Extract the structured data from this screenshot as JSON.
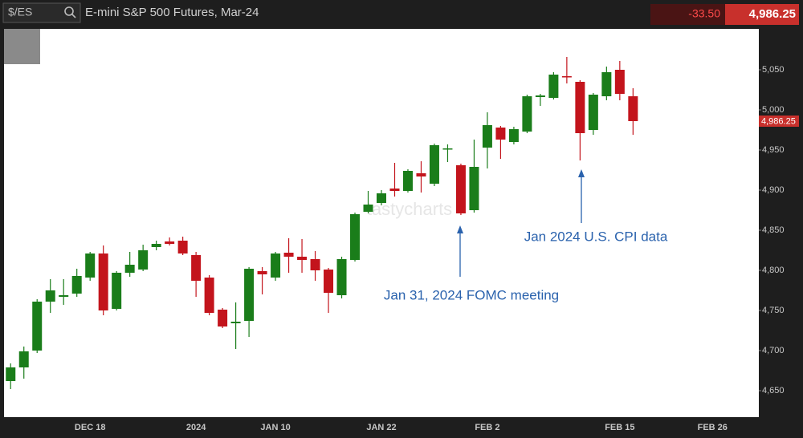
{
  "header": {
    "symbol": "$/ES",
    "title": "E-mini S&P 500 Futures, Mar-24",
    "change": "-33.50",
    "price": "4,986.25"
  },
  "chart_data": {
    "type": "candlestick",
    "watermark": "tastycharts",
    "annotations": [
      "Jan 31, 2024 FOMC meeting",
      "Jan 2024 U.S. CPI data"
    ],
    "up_color": "#1a7d1a",
    "down_color": "#c3141c",
    "grid": false,
    "categories": [
      null,
      null,
      null,
      null,
      null,
      null,
      "DEC 18",
      null,
      null,
      null,
      null,
      null,
      null,
      null,
      "2024",
      null,
      null,
      null,
      null,
      null,
      "JAN 10",
      null,
      null,
      null,
      null,
      null,
      null,
      null,
      "JAN 22",
      null,
      null,
      null,
      null,
      null,
      null,
      null,
      "FEB 2",
      null,
      null,
      null,
      null,
      null,
      null,
      null,
      null,
      null,
      "FEB 15",
      null,
      null,
      null,
      null,
      null,
      null,
      "FEB 26",
      null,
      null,
      null
    ],
    "open": [
      4662,
      4679,
      4700,
      4761,
      4767,
      4771,
      4791,
      4821,
      4752,
      4797,
      4801,
      4829,
      4836,
      4837,
      4819,
      4791,
      4751,
      4734,
      4737,
      4799,
      4791,
      4822,
      4817,
      4814,
      4801,
      4769,
      4813,
      4873,
      4884,
      4902,
      4899,
      4921,
      4908,
      4951,
      4931,
      4875,
      4953,
      4978,
      4960,
      4973,
      5016,
      5015,
      5042,
      5035,
      4975,
      5017,
      5050,
      5017,
      null,
      null,
      null,
      null,
      null,
      null,
      null,
      null,
      null
    ],
    "high": [
      4684,
      4705,
      4764,
      4789,
      4789,
      4802,
      4823,
      4831,
      4799,
      4823,
      4832,
      4837,
      4841,
      4842,
      4823,
      4794,
      4753,
      4760,
      4804,
      4804,
      4823,
      4840,
      4839,
      4824,
      4803,
      4817,
      4872,
      4899,
      4900,
      4934,
      4926,
      4936,
      4958,
      4957,
      4933,
      4963,
      4997,
      4980,
      4979,
      5019,
      5020,
      5047,
      5066,
      5037,
      5021,
      5054,
      5061,
      5027,
      null,
      null,
      null,
      null,
      null,
      null,
      null,
      null,
      null
    ],
    "low": [
      4652,
      4665,
      4697,
      4747,
      4757,
      4767,
      4787,
      4744,
      4750,
      4792,
      4799,
      4825,
      4831,
      4819,
      4767,
      4744,
      4728,
      4702,
      4717,
      4770,
      4787,
      4797,
      4797,
      4787,
      4747,
      4765,
      4811,
      4871,
      4881,
      4892,
      4897,
      4897,
      4905,
      4935,
      4869,
      4872,
      4927,
      4939,
      4957,
      4971,
      5005,
      5013,
      5033,
      4937,
      4969,
      5012,
      5012,
      4969,
      null,
      null,
      null,
      null,
      null,
      null,
      null,
      null,
      null
    ],
    "close": [
      4679,
      4699,
      4761,
      4775,
      4769,
      4793,
      4821,
      4750,
      4797,
      4807,
      4825,
      4833,
      4833,
      4821,
      4787,
      4747,
      4730,
      4736,
      4802,
      4795,
      4821,
      4817,
      4813,
      4800,
      4772,
      4814,
      4870,
      4882,
      4896,
      4899,
      4924,
      4917,
      4956,
      4952,
      4871,
      4929,
      4981,
      4963,
      4976,
      5017,
      5018,
      5044,
      5041,
      4971,
      5019,
      5047,
      5020,
      4986,
      null,
      null,
      null,
      null,
      null,
      null,
      null,
      null,
      null
    ],
    "ylim": [
      4617,
      5101
    ],
    "yticks": [
      {
        "value": 4650,
        "label": "4,650"
      },
      {
        "value": 4700,
        "label": "4,700"
      },
      {
        "value": 4750,
        "label": "4,750"
      },
      {
        "value": 4800,
        "label": "4,800"
      },
      {
        "value": 4850,
        "label": "4,850"
      },
      {
        "value": 4900,
        "label": "4,900"
      },
      {
        "value": 4950,
        "label": "4,950"
      },
      {
        "value": 5000,
        "label": "5,000"
      },
      {
        "value": 5050,
        "label": "5,050"
      }
    ]
  }
}
